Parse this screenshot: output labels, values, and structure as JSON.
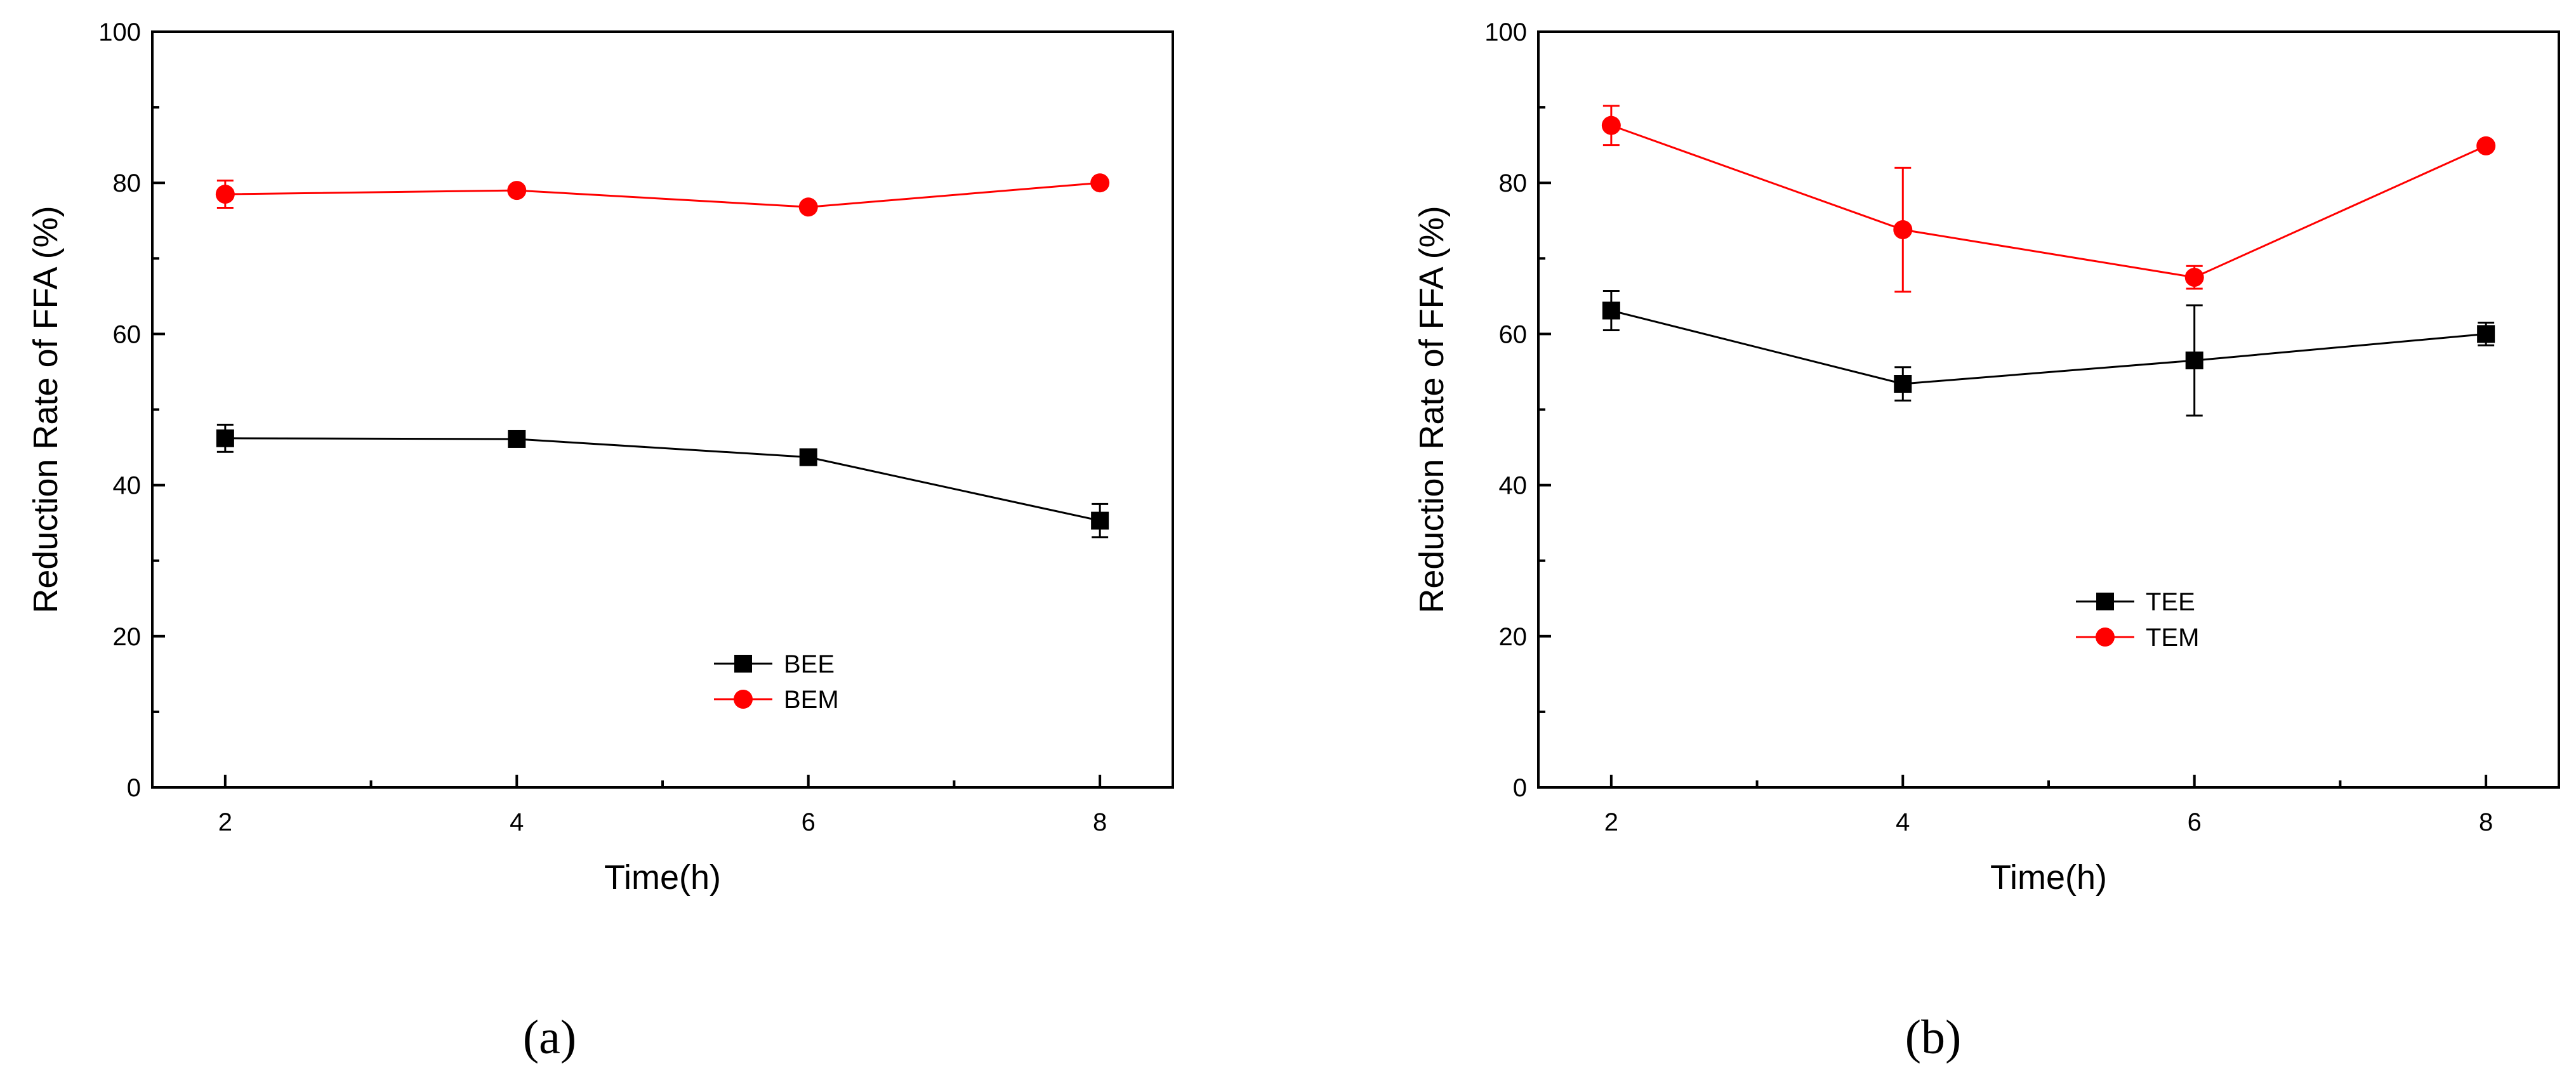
{
  "chart_data": [
    {
      "type": "line",
      "panel_label": "(a)",
      "xlabel": "Time(h)",
      "ylabel": "Reduction Rate of FFA (%)",
      "xlim": [
        1.5,
        8.5
      ],
      "ylim": [
        0,
        100
      ],
      "x_ticks": [
        2,
        4,
        6,
        8
      ],
      "y_ticks": [
        0,
        20,
        40,
        60,
        80,
        100
      ],
      "legend_position": "center-bottom",
      "series": [
        {
          "name": "BEE",
          "color": "#000000",
          "marker": "square",
          "x": [
            2,
            4,
            6,
            8
          ],
          "y": [
            46.2,
            46.1,
            43.7,
            35.3
          ],
          "err": [
            1.8,
            0,
            0,
            2.2
          ]
        },
        {
          "name": "BEM",
          "color": "#ff0000",
          "marker": "circle",
          "x": [
            2,
            4,
            6,
            8
          ],
          "y": [
            78.5,
            79.0,
            76.8,
            80.0
          ],
          "err": [
            1.8,
            0,
            0,
            0
          ]
        }
      ]
    },
    {
      "type": "line",
      "panel_label": "(b)",
      "xlabel": "Time(h)",
      "ylabel": "Reduction Rate of FFA (%)",
      "xlim": [
        1.5,
        8.5
      ],
      "ylim": [
        0,
        100
      ],
      "x_ticks": [
        2,
        4,
        6,
        8
      ],
      "y_ticks": [
        0,
        20,
        40,
        60,
        80,
        100
      ],
      "legend_position": "center",
      "series": [
        {
          "name": "TEE",
          "color": "#000000",
          "marker": "square",
          "x": [
            2,
            4,
            6,
            8
          ],
          "y": [
            63.1,
            53.4,
            56.5,
            60.0
          ],
          "err": [
            2.6,
            2.2,
            7.3,
            1.5
          ]
        },
        {
          "name": "TEM",
          "color": "#ff0000",
          "marker": "circle",
          "x": [
            2,
            4,
            6,
            8
          ],
          "y": [
            87.6,
            73.8,
            67.5,
            84.9
          ],
          "err": [
            2.6,
            8.2,
            1.5,
            0
          ]
        }
      ]
    }
  ]
}
